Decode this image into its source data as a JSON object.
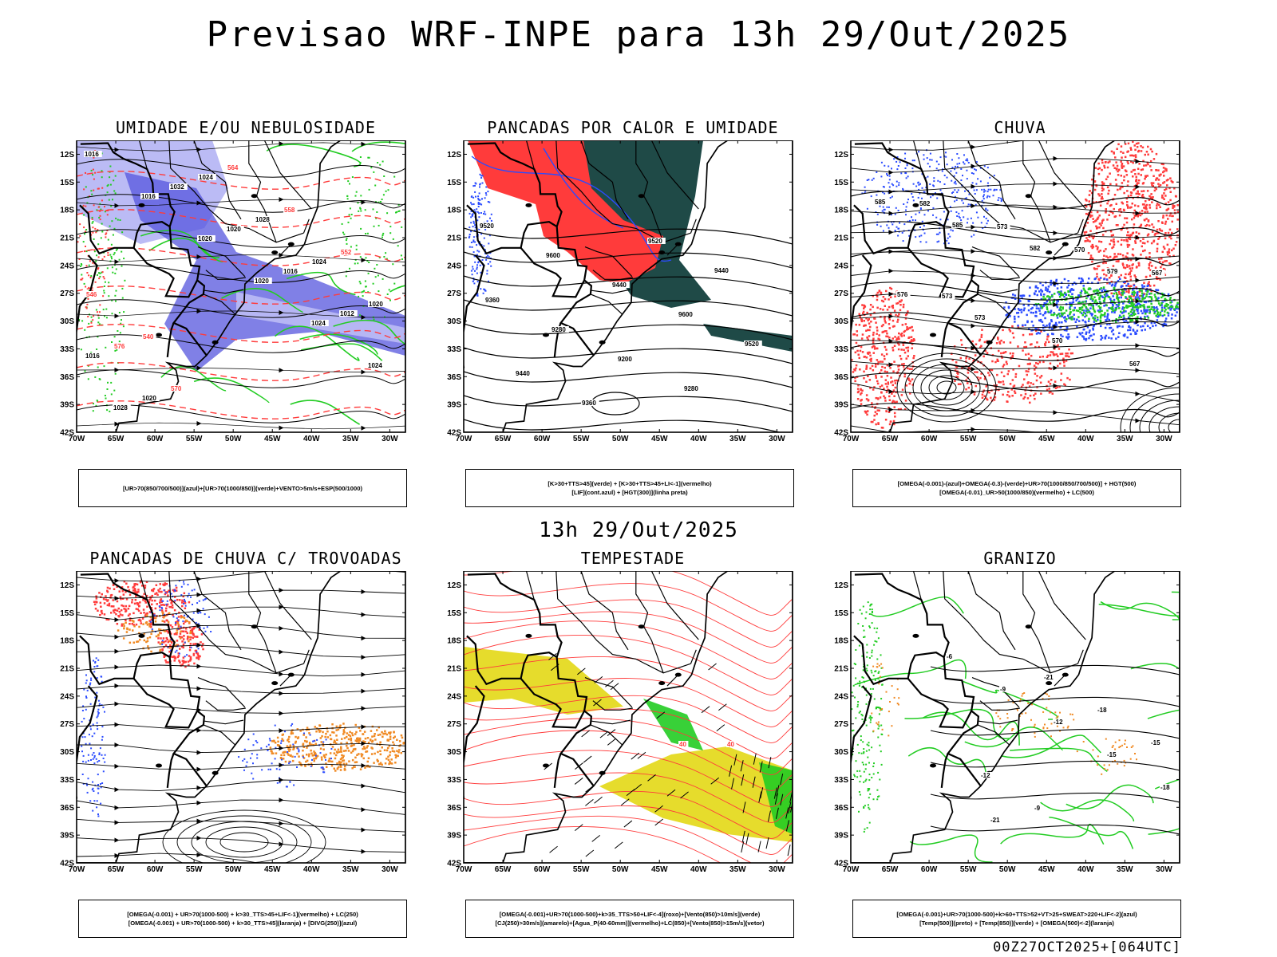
{
  "header": {
    "title": "Previsao WRF-INPE  para 13h 29/Out/2025",
    "mid_time": "13h 29/Out/2025",
    "footer": "00Z27OCT2025+[064UTC]"
  },
  "axes": {
    "lat_labels": [
      "12S",
      "15S",
      "18S",
      "21S",
      "24S",
      "27S",
      "30S",
      "33S",
      "36S",
      "39S",
      "42S"
    ],
    "lon_labels": [
      "70W",
      "65W",
      "60W",
      "55W",
      "50W",
      "45W",
      "40W",
      "35W",
      "30W"
    ]
  },
  "colors": {
    "humidity_blue": "#5555dd",
    "humidity_light": "#bbbbf5",
    "green": "#22cc22",
    "red": "#ff3b3b",
    "dark_teal": "#1f4a47",
    "yellow": "#e6dc2c",
    "orange": "#f08a24",
    "blue": "#2a4bff"
  },
  "panels": [
    {
      "id": "umidade",
      "title": "UMIDADE E/OU NEBULOSIDADE",
      "legend": [
        "[UR>70(850/700/500)](azul)+[UR>70(1000/850)](verde)+VENTO>5m/s+ESP(500/1000)"
      ],
      "contour_labels": [
        "1016",
        "1016",
        "1020",
        "1020",
        "1024",
        "1024",
        "1028",
        "1032",
        "1020",
        "1016",
        "1012",
        "1016",
        "1020",
        "1024",
        "1028",
        "1024",
        "1020",
        "576",
        "570",
        "564",
        "558",
        "552",
        "546",
        "540"
      ]
    },
    {
      "id": "pancadas_calor",
      "title": "PANCADAS POR CALOR E UMIDADE",
      "legend": [
        "[K>30+TTS>45](verde) + [K>30+TTS>45+LI<-1](vermelho)",
        "[LIF](cont.azul) + [HGT(300)](linha preta)"
      ],
      "contour_labels": [
        "9520",
        "9600",
        "9440",
        "9600",
        "9520",
        "9440",
        "9360",
        "9520",
        "9440",
        "9360",
        "9280",
        "9200",
        "9280"
      ]
    },
    {
      "id": "chuva",
      "title": "CHUVA",
      "legend": [
        "[OMEGA(-0.001)-(azul)+OMEGA(-0.3)-(verde)+UR>70(1000/850/700/500)] + HGT(500)",
        "[OMEGA(-0.01)_UR>50(1000/850)(vermelho) + LC(500)"
      ],
      "contour_labels": [
        "585",
        "585",
        "582",
        "579",
        "576",
        "573",
        "570",
        "567",
        "582",
        "573",
        "570",
        "567",
        "573"
      ]
    },
    {
      "id": "trovoadas",
      "title": "PANCADAS DE CHUVA C/ TROVOADAS",
      "legend": [
        "[OMEGA(-0.001) + UR>70(1000-500) + k>30_TTS>45+LIF<-1](vermelho) + LC(250)",
        "[OMEGA(-0.001) + UR>70(1000-500) + k>30_TTS>45](laranja) + [DIVG(250)](azul)"
      ],
      "contour_labels": []
    },
    {
      "id": "tempestade",
      "title": "TEMPESTADE",
      "legend": [
        "[OMEGA(-0.001)+UR>70(1000-500)+k>35_TTS>50+LIF<-4](roxo)+[Vento(850)>10m/s](verde)",
        "[CJ(250)>30m/s](amarelo)+[Agua_P(40-60mm)](vermelho)+LC(850)+[Vento(850)>15m/s](vetor)"
      ],
      "contour_labels": [
        "40",
        "40"
      ]
    },
    {
      "id": "granizo",
      "title": "GRANIZO",
      "legend": [
        "[OMEGA(-0.001)+UR>70(1000-500)+k>60+TTS>52+VT>25+SWEAT>220+LIF<-2](azul)",
        "[Temp(500)](preto) + [Temp(850)](verde) + [OMEGA(500)<-2](laranja)"
      ],
      "contour_labels": [
        "-6",
        "-9",
        "-12",
        "-15",
        "-18",
        "-21",
        "-21",
        "-18",
        "-15",
        "-12",
        "-9"
      ]
    }
  ]
}
